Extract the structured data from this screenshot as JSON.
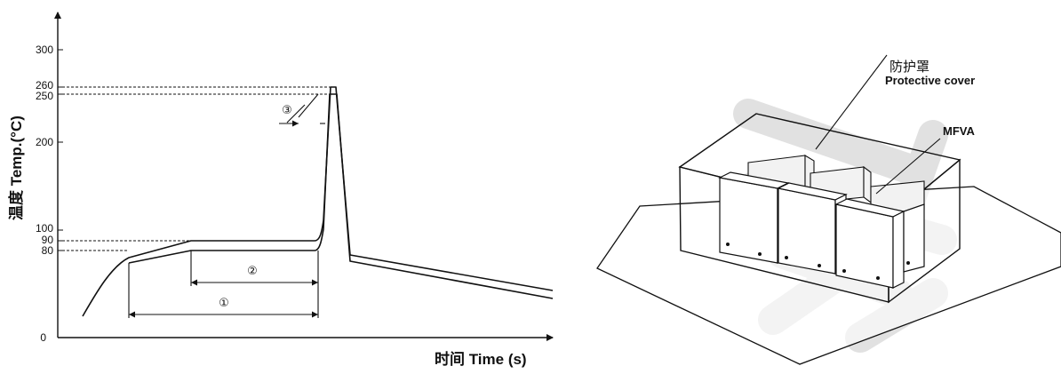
{
  "reflow_profile": {
    "y_axis_title": "温度 Temp.(°C)",
    "x_axis_title": "时间 Time (s)",
    "y_ticks": [
      "300",
      "260",
      "250",
      "200",
      "100",
      "90",
      "80",
      "0"
    ],
    "zones": [
      "①",
      "②",
      "③"
    ]
  },
  "assembly": {
    "cover_label_cn": "防护罩",
    "cover_label_en": "Protective cover",
    "component_label": "MFVA"
  },
  "colors": {
    "line": "#111111",
    "watermark": "#d9d9d9"
  }
}
